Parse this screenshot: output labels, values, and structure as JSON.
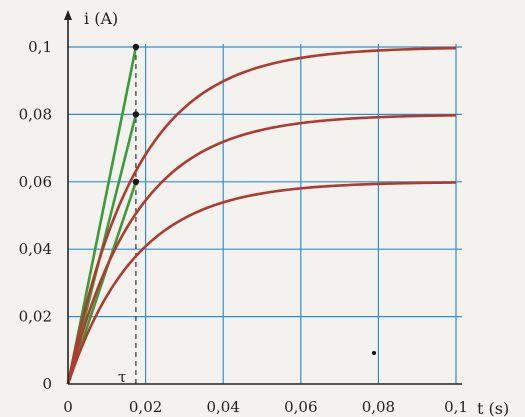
{
  "chart_data": {
    "type": "line",
    "ylabel": "i (A)",
    "xlabel": "t (s)",
    "xlim": [
      0,
      0.1
    ],
    "ylim": [
      0,
      0.1
    ],
    "xticks": [
      0,
      0.02,
      0.04,
      0.06,
      0.08,
      0.1
    ],
    "yticks": [
      0,
      0.02,
      0.04,
      0.06,
      0.08,
      0.1
    ],
    "xtick_labels": [
      "0",
      "0,02",
      "0,04",
      "0,06",
      "0,08",
      "0,1"
    ],
    "ytick_labels": [
      "0",
      "0,02",
      "0,04",
      "0,06",
      "0,08",
      "0,1"
    ],
    "tau": 0.0175,
    "tau_label": "τ",
    "grid": true,
    "colors": {
      "grid": "#2f8fd0",
      "curve": "#b03a2e",
      "tangent": "#3a9b3a",
      "axis": "#222222"
    },
    "series": [
      {
        "i_max": 0.1
      },
      {
        "i_max": 0.08
      },
      {
        "i_max": 0.06
      }
    ]
  }
}
